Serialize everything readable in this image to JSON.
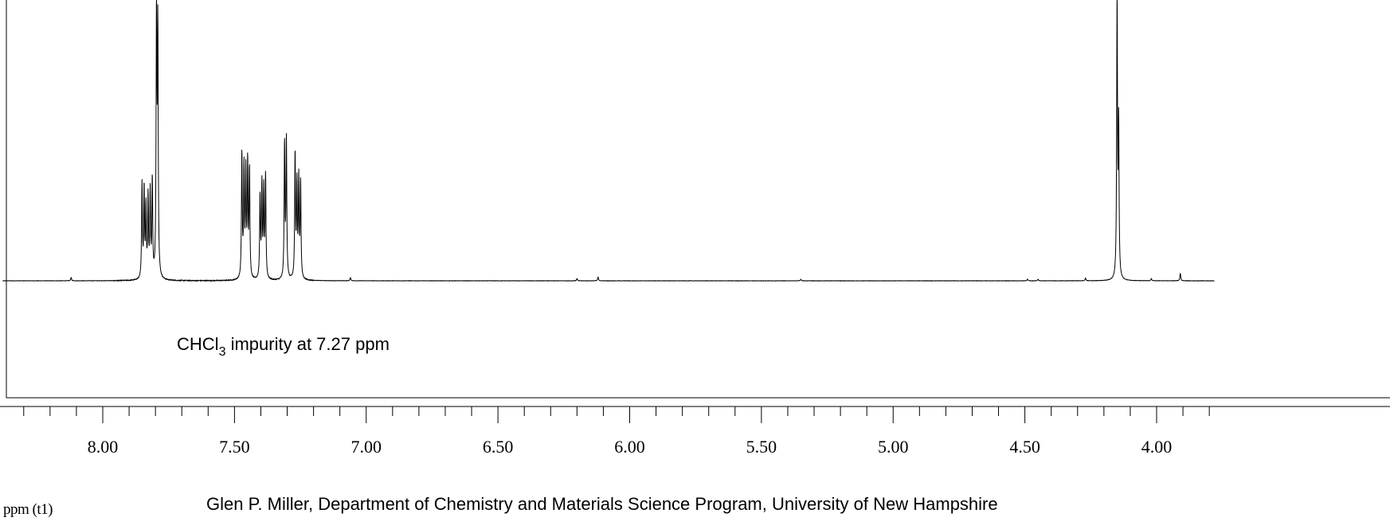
{
  "chart_data": {
    "type": "line",
    "title": "",
    "xlabel": "ppm (t1)",
    "ylabel": "",
    "xlim": [
      8.38,
      3.78
    ],
    "ylim": [
      -0.45,
      1.0
    ],
    "x_reversed": true,
    "grid": false,
    "legend": "none",
    "major_ticks": [
      8.0,
      7.5,
      7.0,
      6.5,
      6.0,
      5.5,
      5.0,
      4.5,
      4.0
    ],
    "tick_labels": [
      "8.00",
      "7.50",
      "7.00",
      "6.50",
      "6.00",
      "5.50",
      "5.00",
      "4.50",
      "4.00"
    ],
    "minor_tick_step": 0.1,
    "series": [
      {
        "peaks": [
          {
            "ppm": 8.12,
            "height": 0.012
          },
          {
            "ppm": 7.851,
            "height": 0.35
          },
          {
            "ppm": 7.843,
            "height": 0.33
          },
          {
            "ppm": 7.836,
            "height": 0.26
          },
          {
            "ppm": 7.828,
            "height": 0.3
          },
          {
            "ppm": 7.82,
            "height": 0.31
          },
          {
            "ppm": 7.812,
            "height": 0.36
          },
          {
            "ppm": 7.796,
            "height": 0.98
          },
          {
            "ppm": 7.791,
            "height": 0.9
          },
          {
            "ppm": 7.472,
            "height": 0.46
          },
          {
            "ppm": 7.464,
            "height": 0.4
          },
          {
            "ppm": 7.457,
            "height": 0.38
          },
          {
            "ppm": 7.45,
            "height": 0.42
          },
          {
            "ppm": 7.443,
            "height": 0.4
          },
          {
            "ppm": 7.403,
            "height": 0.3
          },
          {
            "ppm": 7.396,
            "height": 0.34
          },
          {
            "ppm": 7.389,
            "height": 0.32
          },
          {
            "ppm": 7.382,
            "height": 0.38
          },
          {
            "ppm": 7.31,
            "height": 0.5
          },
          {
            "ppm": 7.303,
            "height": 0.51
          },
          {
            "ppm": 7.27,
            "height": 0.46
          },
          {
            "ppm": 7.263,
            "height": 0.34
          },
          {
            "ppm": 7.256,
            "height": 0.36
          },
          {
            "ppm": 7.249,
            "height": 0.35
          },
          {
            "ppm": 7.06,
            "height": 0.012
          },
          {
            "ppm": 6.2,
            "height": 0.008
          },
          {
            "ppm": 6.12,
            "height": 0.014
          },
          {
            "ppm": 5.35,
            "height": 0.006
          },
          {
            "ppm": 4.49,
            "height": 0.006
          },
          {
            "ppm": 4.45,
            "height": 0.006
          },
          {
            "ppm": 4.27,
            "height": 0.01
          },
          {
            "ppm": 4.15,
            "height": 1.05
          },
          {
            "ppm": 4.144,
            "height": 0.55
          },
          {
            "ppm": 4.02,
            "height": 0.008
          },
          {
            "ppm": 3.91,
            "height": 0.028
          }
        ]
      }
    ],
    "annotations": [
      {
        "text_main": "CHCl",
        "text_sub": "3",
        "text_rest": " impurity at 7.27 ppm"
      }
    ],
    "footer": "Glen P. Miller, Department of Chemistry and Materials Science Program, University of New Hampshire"
  }
}
